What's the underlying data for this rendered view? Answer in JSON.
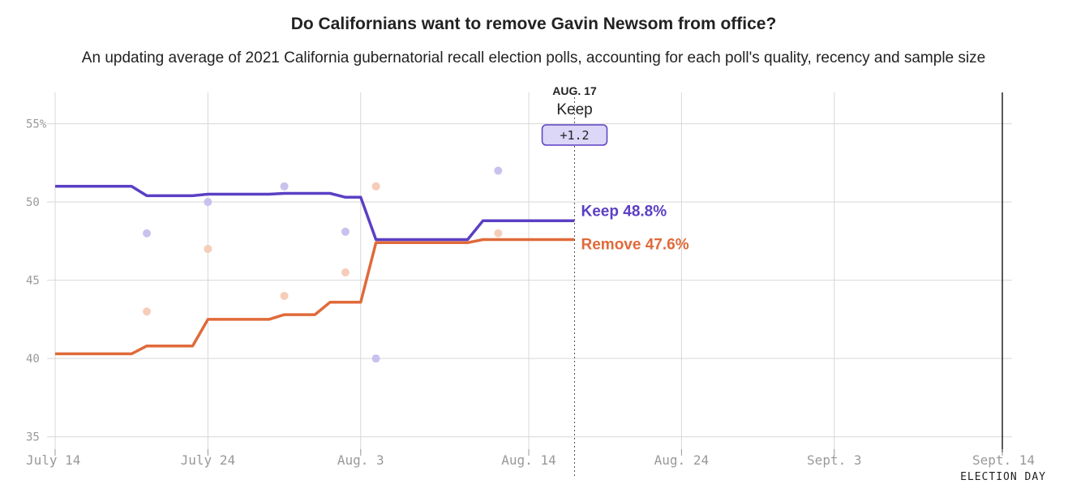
{
  "chart_data": {
    "type": "line",
    "title": "Do Californians want to remove Gavin Newsom from office?",
    "subtitle": "An updating average of 2021 California gubernatorial recall election polls, accounting for each poll's quality, recency and sample size",
    "x_start": "2021-07-14",
    "x_end": "2021-09-14",
    "ylim": [
      34,
      57
    ],
    "y_ticks": [
      {
        "value": 35,
        "label": "35"
      },
      {
        "value": 40,
        "label": "40"
      },
      {
        "value": 45,
        "label": "45"
      },
      {
        "value": 50,
        "label": "50"
      },
      {
        "value": 55,
        "label": "55%"
      }
    ],
    "x_ticks": [
      {
        "date": "2021-07-14",
        "label": "July 14"
      },
      {
        "date": "2021-07-24",
        "label": "July 24"
      },
      {
        "date": "2021-08-03",
        "label": "Aug. 3"
      },
      {
        "date": "2021-08-14",
        "label": "Aug. 14"
      },
      {
        "date": "2021-08-24",
        "label": "Aug. 24"
      },
      {
        "date": "2021-09-03",
        "label": "Sept. 3"
      },
      {
        "date": "2021-09-14",
        "label": "Sept. 14"
      }
    ],
    "election_day": {
      "date": "2021-09-14",
      "label": "ELECTION DAY"
    },
    "grid": true,
    "series": [
      {
        "name": "Keep",
        "color": "#5b3fc4",
        "point_color": "#c9c1ee",
        "end_label": "Keep 48.8%",
        "line": [
          [
            "2021-07-14",
            51.0
          ],
          [
            "2021-07-19",
            51.0
          ],
          [
            "2021-07-20",
            50.4
          ],
          [
            "2021-07-23",
            50.4
          ],
          [
            "2021-07-24",
            50.5
          ],
          [
            "2021-07-28",
            50.5
          ],
          [
            "2021-07-29",
            50.55
          ],
          [
            "2021-08-01",
            50.55
          ],
          [
            "2021-08-02",
            50.3
          ],
          [
            "2021-08-03",
            50.3
          ],
          [
            "2021-08-04",
            47.6
          ],
          [
            "2021-08-10",
            47.6
          ],
          [
            "2021-08-11",
            48.8
          ],
          [
            "2021-08-17",
            48.8
          ]
        ],
        "polls": [
          [
            "2021-07-20",
            48
          ],
          [
            "2021-07-24",
            50
          ],
          [
            "2021-07-29",
            51
          ],
          [
            "2021-08-02",
            48.1
          ],
          [
            "2021-08-04",
            40
          ],
          [
            "2021-08-12",
            52
          ]
        ]
      },
      {
        "name": "Remove",
        "color": "#e06a3a",
        "point_color": "#f6cdb9",
        "end_label": "Remove 47.6%",
        "line": [
          [
            "2021-07-14",
            40.3
          ],
          [
            "2021-07-19",
            40.3
          ],
          [
            "2021-07-20",
            40.8
          ],
          [
            "2021-07-23",
            40.8
          ],
          [
            "2021-07-24",
            42.5
          ],
          [
            "2021-07-27",
            42.5
          ],
          [
            "2021-07-28",
            42.5
          ],
          [
            "2021-07-29",
            42.8
          ],
          [
            "2021-07-31",
            42.8
          ],
          [
            "2021-08-01",
            43.6
          ],
          [
            "2021-08-03",
            43.6
          ],
          [
            "2021-08-04",
            47.4
          ],
          [
            "2021-08-10",
            47.4
          ],
          [
            "2021-08-11",
            47.6
          ],
          [
            "2021-08-17",
            47.6
          ]
        ],
        "polls": [
          [
            "2021-07-20",
            43
          ],
          [
            "2021-07-24",
            47
          ],
          [
            "2021-07-29",
            44
          ],
          [
            "2021-08-02",
            45.5
          ],
          [
            "2021-08-04",
            51
          ],
          [
            "2021-08-12",
            48
          ]
        ]
      }
    ],
    "hover": {
      "date": "2021-08-17",
      "date_label": "AUG. 17",
      "leader": "Keep",
      "margin": "+1.2"
    }
  }
}
